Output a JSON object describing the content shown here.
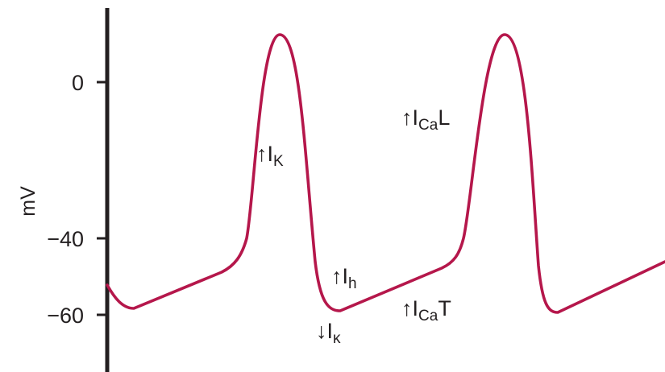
{
  "figure": {
    "y_axis": {
      "label": "mV",
      "ticks": [
        {
          "value": 0,
          "label": "0"
        },
        {
          "value": -40,
          "label": "−40"
        },
        {
          "value": -60,
          "label": "−60"
        }
      ]
    },
    "trace_color": "#b5174b",
    "annotations": {
      "ik_up": {
        "arrow": "↑",
        "main": "I",
        "sub": "K"
      },
      "ical_up": {
        "arrow": "↑",
        "main": "I",
        "sub": "Ca",
        "suffix": "L"
      },
      "ih_up": {
        "arrow": "↑",
        "main": "I",
        "sub": "h"
      },
      "icat_up": {
        "arrow": "↑",
        "main": "I",
        "sub": "Ca",
        "suffix": "T"
      },
      "ik_down": {
        "arrow": "↓",
        "main": "I",
        "sub": "κ"
      }
    }
  }
}
